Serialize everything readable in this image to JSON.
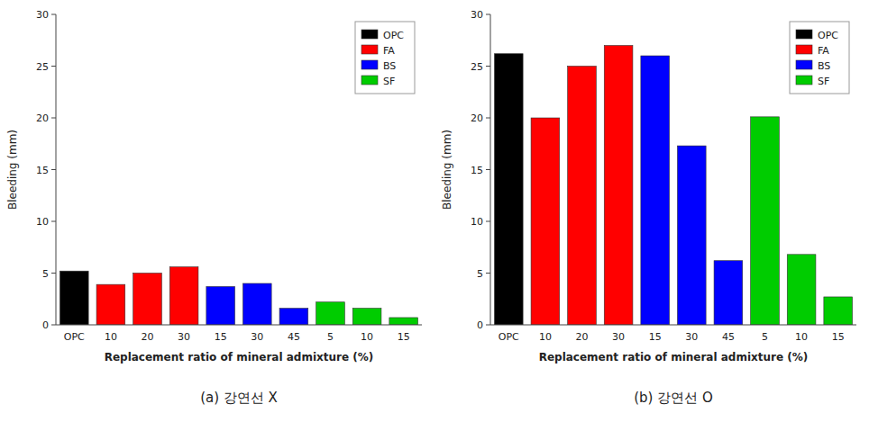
{
  "chart_data": [
    {
      "type": "bar",
      "subtitle": "(a)  강연선  X",
      "xlabel": "Replacement ratio of mineral admixture (%)",
      "ylabel": "Bleeding (mm)",
      "categories": [
        "OPC",
        "10",
        "20",
        "30",
        "15",
        "30",
        "45",
        "5",
        "10",
        "15"
      ],
      "series": [
        {
          "name": "OPC",
          "color": "#000000",
          "values": [
            5.2,
            null,
            null,
            null,
            null,
            null,
            null,
            null,
            null,
            null
          ]
        },
        {
          "name": "FA",
          "color": "#ff0000",
          "values": [
            null,
            3.9,
            5.0,
            5.6,
            null,
            null,
            null,
            null,
            null,
            null
          ]
        },
        {
          "name": "BS",
          "color": "#0000ff",
          "values": [
            null,
            null,
            null,
            null,
            3.7,
            4.0,
            1.6,
            null,
            null,
            null
          ]
        },
        {
          "name": "SF",
          "color": "#00cc00",
          "values": [
            null,
            null,
            null,
            null,
            null,
            null,
            null,
            2.2,
            1.6,
            0.7
          ]
        }
      ],
      "ylim": [
        0,
        30
      ],
      "yticks": [
        0,
        5,
        10,
        15,
        20,
        25,
        30
      ],
      "legend": "upper right",
      "grid": false
    },
    {
      "type": "bar",
      "subtitle": "(b)  강연선  O",
      "xlabel": "Replacement ratio of mineral admixture (%)",
      "ylabel": "Bleeding (mm)",
      "categories": [
        "OPC",
        "10",
        "20",
        "30",
        "15",
        "30",
        "45",
        "5",
        "10",
        "15"
      ],
      "series": [
        {
          "name": "OPC",
          "color": "#000000",
          "values": [
            26.2,
            null,
            null,
            null,
            null,
            null,
            null,
            null,
            null,
            null
          ]
        },
        {
          "name": "FA",
          "color": "#ff0000",
          "values": [
            null,
            20.0,
            25.0,
            27.0,
            null,
            null,
            null,
            null,
            null,
            null
          ]
        },
        {
          "name": "BS",
          "color": "#0000ff",
          "values": [
            null,
            null,
            null,
            null,
            26.0,
            17.3,
            6.2,
            null,
            null,
            null
          ]
        },
        {
          "name": "SF",
          "color": "#00cc00",
          "values": [
            null,
            null,
            null,
            null,
            null,
            null,
            null,
            20.1,
            6.8,
            2.7
          ]
        }
      ],
      "ylim": [
        0,
        30
      ],
      "yticks": [
        0,
        5,
        10,
        15,
        20,
        25,
        30
      ],
      "legend": "upper right",
      "grid": false
    }
  ]
}
